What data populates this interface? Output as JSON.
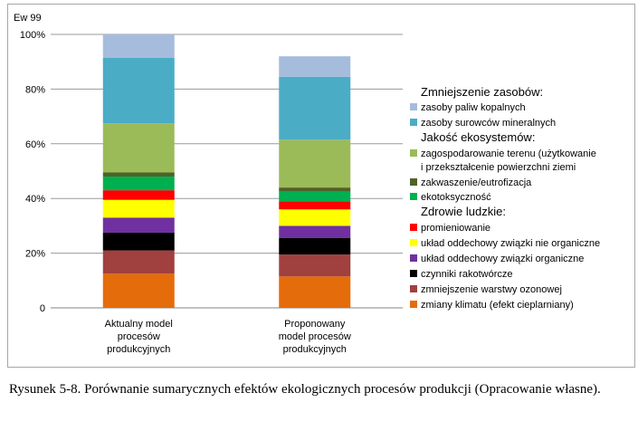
{
  "caption": "Rysunek 5-8. Porównanie sumarycznych efektów ekologicznych procesów produkcji (Opracowanie własne).",
  "chart_data": {
    "type": "bar",
    "stacked": true,
    "ylabel": "Ew 99",
    "ylim": [
      0,
      100
    ],
    "yticks": [
      "0",
      "20%",
      "40%",
      "60%",
      "80%",
      "100%"
    ],
    "grid": true,
    "legend_position": "right",
    "categories": [
      [
        "Aktualny model",
        "procesów",
        "produkcyjnych"
      ],
      [
        "Proponowany",
        "model procesów",
        "produkcyjnych"
      ]
    ],
    "legend_groups": {
      "resources": "Zmniejszenie zasobów:",
      "ecosystems": "Jakość ekosystemów:",
      "health": "Zdrowie ludzkie:"
    },
    "series": [
      {
        "name": "zmiany klimatu  (efekt cieplarniany)",
        "color": "#e46c0a",
        "values": [
          12.5,
          11.5
        ]
      },
      {
        "name": "zmniejszenie warstwy ozonowej",
        "color": "#a0403f",
        "values": [
          8.5,
          8
        ]
      },
      {
        "name": "czynniki rakotwórcze",
        "color": "#000000",
        "values": [
          6.5,
          6
        ]
      },
      {
        "name": "układ oddechowy związki organiczne",
        "color": "#7030a0",
        "values": [
          5.5,
          4.5
        ]
      },
      {
        "name": "układ oddechowy związki nie organiczne",
        "color": "#ffff00",
        "values": [
          6.5,
          6
        ]
      },
      {
        "name": "promieniowanie",
        "color": "#ff0000",
        "values": [
          3.5,
          3
        ]
      },
      {
        "name": "ekotoksyczność",
        "color": "#00b050",
        "values": [
          5,
          3.5
        ]
      },
      {
        "name": "zakwaszenie/eutrofizacja",
        "color": "#4f6228",
        "values": [
          1.5,
          1.5
        ]
      },
      {
        "name": [
          "zagospodarowanie terenu (użytkowanie",
          "i przekształcenie powierzchni ziemi"
        ],
        "color": "#9bbb59",
        "values": [
          18,
          17.5
        ]
      },
      {
        "name": "zasoby surowców mineralnych",
        "color": "#4bacc6",
        "values": [
          24,
          23
        ]
      },
      {
        "name": "zasoby paliw kopalnych",
        "color": "#a6bcdc",
        "values": [
          8.5,
          7.5
        ]
      }
    ]
  }
}
